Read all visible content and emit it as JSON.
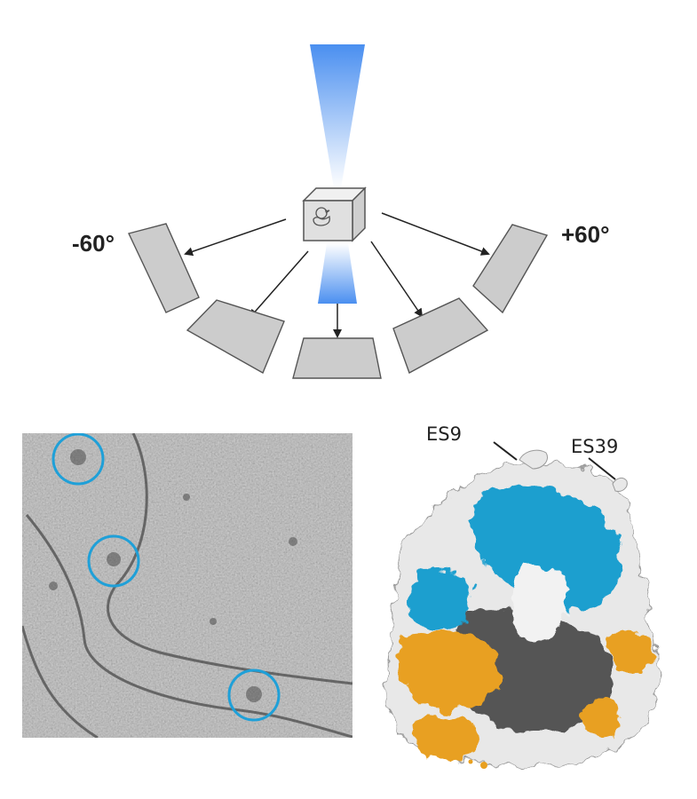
{
  "diagram": {
    "labels": {
      "angle_min": "-60°",
      "angle_max": "+60°"
    },
    "tilt_series": {
      "tilt_angles_deg": [
        -60,
        -30,
        0,
        30,
        60
      ]
    },
    "ribosome_annotations": {
      "es9": "ES9",
      "es39": "ES39"
    },
    "colors": {
      "beam_blue": "#4a8ff0",
      "detector_gray": "#cccccc",
      "detector_outline": "#555555",
      "cube_face": "#e0e0e0",
      "circle_marker": "#1fa0d8",
      "density_blue": "#1e9fcf",
      "density_orange": "#e8a020",
      "density_white": "#e8e8e8",
      "density_dark": "#3a3a3a",
      "micrograph_gray": "#b8b8b8"
    },
    "icons": {
      "sample": "rubber-duck-icon"
    }
  }
}
